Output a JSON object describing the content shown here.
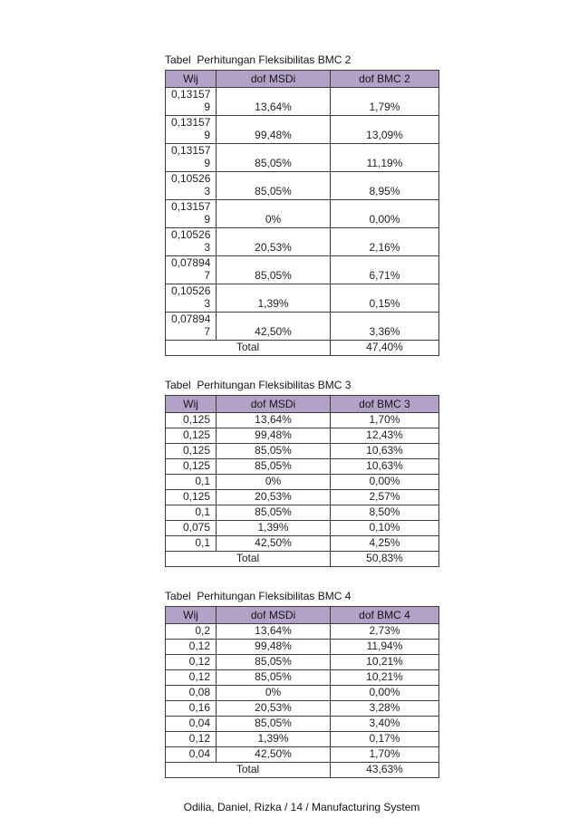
{
  "document": {
    "footer": "Odilia, Daniel, Rizka / 14 / Manufacturing System"
  },
  "colors": {
    "header_bg": "#b2a2c7",
    "border": "#3c3c3c",
    "text": "#1f1f1f"
  },
  "tables": [
    {
      "title": "Tabel  Perhitungan Fleksibilitas BMC 2",
      "columns": [
        "Wij",
        "dof MSDi",
        "dof BMC 2"
      ],
      "rows": [
        {
          "wij": "0,13157\n9",
          "dof_msdi": "13,64%",
          "dof_bmc": "1,79%"
        },
        {
          "wij": "0,13157\n9",
          "dof_msdi": "99,48%",
          "dof_bmc": "13,09%"
        },
        {
          "wij": "0,13157\n9",
          "dof_msdi": "85,05%",
          "dof_bmc": "11,19%"
        },
        {
          "wij": "0,10526\n3",
          "dof_msdi": "85,05%",
          "dof_bmc": "8,95%"
        },
        {
          "wij": "0,13157\n9",
          "dof_msdi": "0%",
          "dof_bmc": "0,00%"
        },
        {
          "wij": "0,10526\n3",
          "dof_msdi": "20,53%",
          "dof_bmc": "2,16%"
        },
        {
          "wij": "0,07894\n7",
          "dof_msdi": "85,05%",
          "dof_bmc": "6,71%"
        },
        {
          "wij": "0,10526\n3",
          "dof_msdi": "1,39%",
          "dof_bmc": "0,15%"
        },
        {
          "wij": "0,07894\n7",
          "dof_msdi": "42,50%",
          "dof_bmc": "3,36%"
        }
      ],
      "total_label": "Total",
      "total_value": "47,40%"
    },
    {
      "title": "Tabel  Perhitungan Fleksibilitas BMC 3",
      "columns": [
        "Wij",
        "dof MSDi",
        "dof BMC 3"
      ],
      "rows": [
        {
          "wij": "0,125",
          "dof_msdi": "13,64%",
          "dof_bmc": "1,70%"
        },
        {
          "wij": "0,125",
          "dof_msdi": "99,48%",
          "dof_bmc": "12,43%"
        },
        {
          "wij": "0,125",
          "dof_msdi": "85,05%",
          "dof_bmc": "10,63%"
        },
        {
          "wij": "0,125",
          "dof_msdi": "85,05%",
          "dof_bmc": "10,63%"
        },
        {
          "wij": "0,1",
          "dof_msdi": "0%",
          "dof_bmc": "0,00%"
        },
        {
          "wij": "0,125",
          "dof_msdi": "20,53%",
          "dof_bmc": "2,57%"
        },
        {
          "wij": "0,1",
          "dof_msdi": "85,05%",
          "dof_bmc": "8,50%"
        },
        {
          "wij": "0,075",
          "dof_msdi": "1,39%",
          "dof_bmc": "0,10%"
        },
        {
          "wij": "0,1",
          "dof_msdi": "42,50%",
          "dof_bmc": "4,25%"
        }
      ],
      "total_label": "Total",
      "total_value": "50,83%"
    },
    {
      "title": "Tabel  Perhitungan Fleksibilitas BMC 4",
      "columns": [
        "Wij",
        "dof MSDi",
        "dof BMC 4"
      ],
      "rows": [
        {
          "wij": "0,2",
          "dof_msdi": "13,64%",
          "dof_bmc": "2,73%"
        },
        {
          "wij": "0,12",
          "dof_msdi": "99,48%",
          "dof_bmc": "11,94%"
        },
        {
          "wij": "0,12",
          "dof_msdi": "85,05%",
          "dof_bmc": "10,21%"
        },
        {
          "wij": "0,12",
          "dof_msdi": "85,05%",
          "dof_bmc": "10,21%"
        },
        {
          "wij": "0,08",
          "dof_msdi": "0%",
          "dof_bmc": "0,00%"
        },
        {
          "wij": "0,16",
          "dof_msdi": "20,53%",
          "dof_bmc": "3,28%"
        },
        {
          "wij": "0,04",
          "dof_msdi": "85,05%",
          "dof_bmc": "3,40%"
        },
        {
          "wij": "0,12",
          "dof_msdi": "1,39%",
          "dof_bmc": "0,17%"
        },
        {
          "wij": "0,04",
          "dof_msdi": "42,50%",
          "dof_bmc": "1,70%"
        }
      ],
      "total_label": "Total",
      "total_value": "43,63%"
    }
  ]
}
